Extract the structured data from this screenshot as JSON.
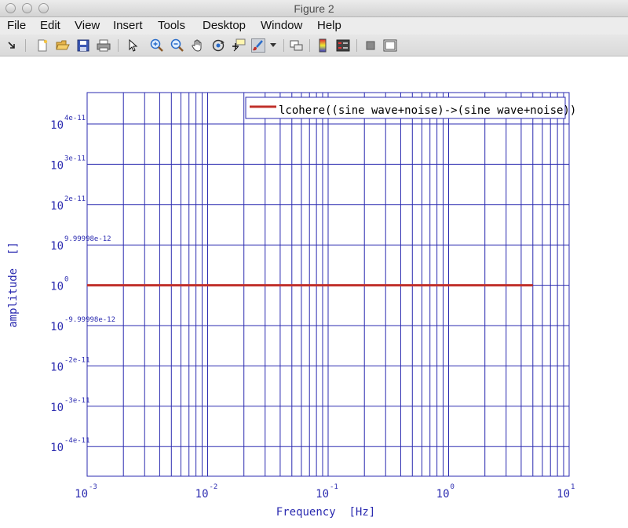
{
  "window": {
    "title": "Figure 2"
  },
  "menu": [
    "File",
    "Edit",
    "View",
    "Insert",
    "Tools",
    "Desktop",
    "Window",
    "Help"
  ],
  "toolbar": {
    "icons": [
      "dock-arrow-icon",
      "new-figure-icon",
      "open-icon",
      "save-icon",
      "print-icon",
      "pointer-icon",
      "zoom-in-icon",
      "zoom-out-icon",
      "pan-hand-icon",
      "rotate-3d-icon",
      "data-cursor-icon",
      "brush-icon",
      "brush-menu-icon",
      "link-plot-icon",
      "colorbar-icon",
      "legend-icon",
      "hide-plot-tools-icon",
      "show-plot-tools-icon"
    ]
  },
  "chart_data": {
    "type": "line",
    "xlabel": "Frequency  [Hz]",
    "ylabel": "amplitude  []",
    "x_scale": "log",
    "xlim": [
      0.001,
      10
    ],
    "x_ticks": [
      {
        "base": "10",
        "exp": "-3"
      },
      {
        "base": "10",
        "exp": "-2"
      },
      {
        "base": "10",
        "exp": "-1"
      },
      {
        "base": "10",
        "exp": "0"
      },
      {
        "base": "10",
        "exp": "1"
      }
    ],
    "y_ticks": [
      {
        "base": "10",
        "exp": "4e-11"
      },
      {
        "base": "10",
        "exp": "3e-11"
      },
      {
        "base": "10",
        "exp": "2e-11"
      },
      {
        "base": "10",
        "exp": "9.99998e-12"
      },
      {
        "base": "10",
        "exp": "0"
      },
      {
        "base": "10",
        "exp": "-9.99998e-12"
      },
      {
        "base": "10",
        "exp": "-2e-11"
      },
      {
        "base": "10",
        "exp": "-3e-11"
      },
      {
        "base": "10",
        "exp": "-4e-11"
      }
    ],
    "grid": true,
    "legend_position": "top-right",
    "series": [
      {
        "name": "lcohere((sine wave+noise)->(sine wave+noise))",
        "color": "#c0312b",
        "x": [
          0.001,
          5
        ],
        "y": [
          1,
          1
        ]
      }
    ]
  }
}
